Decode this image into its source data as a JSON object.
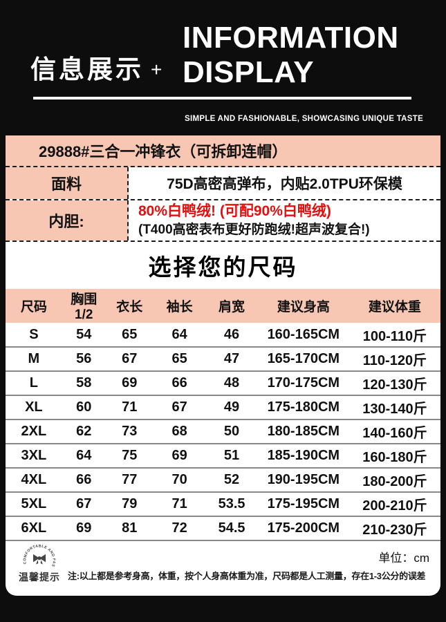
{
  "header": {
    "title_cn": "信息展示",
    "plus": "+",
    "title_en_line1": "INFORMATION",
    "title_en_line2": "DISPLAY",
    "subtitle": "SIMPLE AND FASHIONABLE, SHOWCASING UNIQUE TASTE"
  },
  "product": {
    "title": "29888#三合一冲锋衣（可拆卸连帽）",
    "fabric": {
      "label": "面料",
      "value": "75D高密高弹布，内贴2.0TPU环保模"
    },
    "liner": {
      "label": "内胆:",
      "value_red": "80%白鸭绒! (可配90%白鸭绒)",
      "value_black": "(T400高密表布更好防跑绒!超声波复合!)"
    }
  },
  "size_section": {
    "heading": "选择您的尺码",
    "columns": [
      "尺码",
      "胸围1/2",
      "衣长",
      "袖长",
      "肩宽",
      "建议身高",
      "建议体重"
    ],
    "rows": [
      [
        "S",
        "54",
        "65",
        "64",
        "46",
        "160-165CM",
        "100-110斤"
      ],
      [
        "M",
        "56",
        "67",
        "65",
        "47",
        "165-170CM",
        "110-120斤"
      ],
      [
        "L",
        "58",
        "69",
        "66",
        "48",
        "170-175CM",
        "120-130斤"
      ],
      [
        "XL",
        "60",
        "71",
        "67",
        "49",
        "175-180CM",
        "130-140斤"
      ],
      [
        "2XL",
        "62",
        "73",
        "68",
        "50",
        "180-185CM",
        "140-160斤"
      ],
      [
        "3XL",
        "64",
        "75",
        "69",
        "51",
        "185-190CM",
        "160-180斤"
      ],
      [
        "4XL",
        "66",
        "77",
        "70",
        "52",
        "190-195CM",
        "180-200斤"
      ],
      [
        "5XL",
        "67",
        "79",
        "71",
        "53.5",
        "175-195CM",
        "200-210斤"
      ],
      [
        "6XL",
        "69",
        "81",
        "72",
        "54.5",
        "175-200CM",
        "210-230斤"
      ]
    ]
  },
  "footer": {
    "stamp_arc_text": "COMFORTABLE AND FASHIONABLE",
    "stamp_label": "温馨提示",
    "unit": "单位：cm",
    "note": "注:以上都是参考身高，体重，按个人身高体重为准，尺码都是人工测量，存在1-3公分的误差"
  },
  "colors": {
    "background": "#0d0d0d",
    "panel_pink": "#f7c7b4",
    "red_text": "#e60d0d",
    "line_gray": "#878787"
  }
}
